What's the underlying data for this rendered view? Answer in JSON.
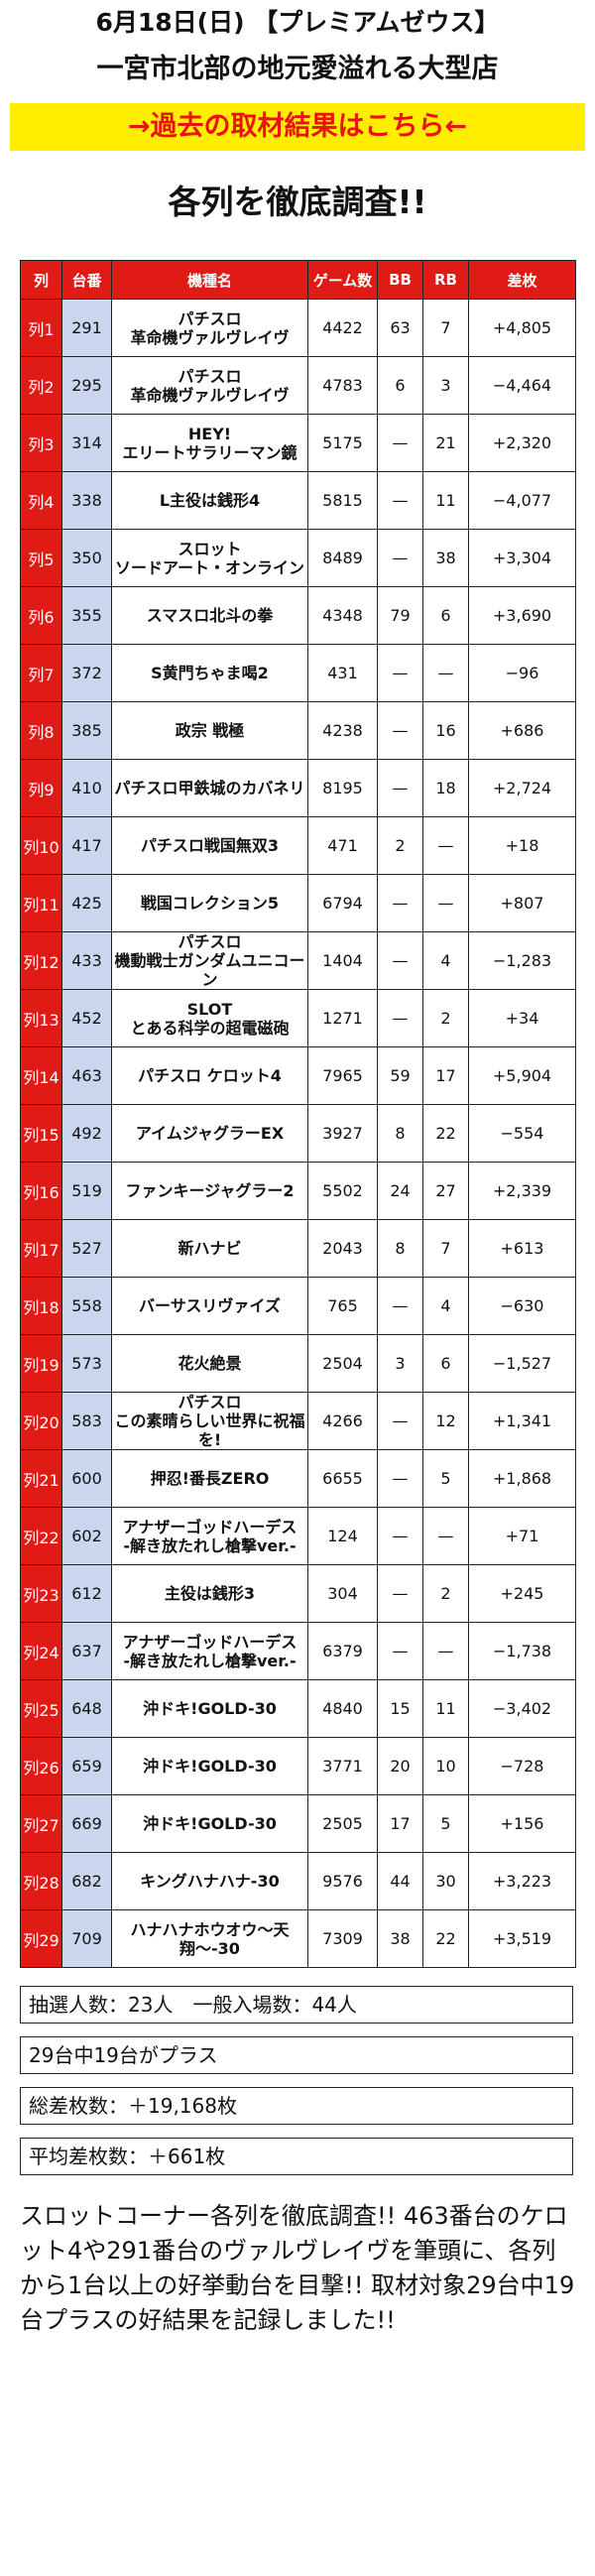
{
  "header": {
    "title1": "6月18日(日) 【プレミアムゼウス】",
    "title2": "一宮市北部の地元愛溢れる大型店",
    "link_label": "→過去の取材結果はこちら←",
    "heading": "各列を徹底調査!!"
  },
  "table": {
    "headers": [
      "列",
      "台番",
      "機種名",
      "ゲーム数",
      "BB",
      "RB",
      "差枚"
    ],
    "rows": [
      {
        "col": "列1",
        "dai": "291",
        "name": [
          "パチスロ",
          "革命機ヴァルヴレイヴ"
        ],
        "games": "4422",
        "bb": "63",
        "rb": "7",
        "diff": "+4,805"
      },
      {
        "col": "列2",
        "dai": "295",
        "name": [
          "パチスロ",
          "革命機ヴァルヴレイヴ"
        ],
        "games": "4783",
        "bb": "6",
        "rb": "3",
        "diff": "−4,464"
      },
      {
        "col": "列3",
        "dai": "314",
        "name": [
          "HEY!",
          "エリートサラリーマン鏡"
        ],
        "games": "5175",
        "bb": "—",
        "rb": "21",
        "diff": "+2,320"
      },
      {
        "col": "列4",
        "dai": "338",
        "name": [
          "L主役は銭形4"
        ],
        "games": "5815",
        "bb": "—",
        "rb": "11",
        "diff": "−4,077"
      },
      {
        "col": "列5",
        "dai": "350",
        "name": [
          "スロット",
          "ソードアート・オンライン"
        ],
        "games": "8489",
        "bb": "—",
        "rb": "38",
        "diff": "+3,304"
      },
      {
        "col": "列6",
        "dai": "355",
        "name": [
          "スマスロ北斗の拳"
        ],
        "games": "4348",
        "bb": "79",
        "rb": "6",
        "diff": "+3,690"
      },
      {
        "col": "列7",
        "dai": "372",
        "name": [
          "S黄門ちゃま喝2"
        ],
        "games": "431",
        "bb": "—",
        "rb": "—",
        "diff": "−96"
      },
      {
        "col": "列8",
        "dai": "385",
        "name": [
          "政宗 戦極"
        ],
        "games": "4238",
        "bb": "—",
        "rb": "16",
        "diff": "+686"
      },
      {
        "col": "列9",
        "dai": "410",
        "name": [
          "パチスロ甲鉄城のカバネリ"
        ],
        "games": "8195",
        "bb": "—",
        "rb": "18",
        "diff": "+2,724"
      },
      {
        "col": "列10",
        "dai": "417",
        "name": [
          "パチスロ戦国無双3"
        ],
        "games": "471",
        "bb": "2",
        "rb": "—",
        "diff": "+18"
      },
      {
        "col": "列11",
        "dai": "425",
        "name": [
          "戦国コレクション5"
        ],
        "games": "6794",
        "bb": "—",
        "rb": "—",
        "diff": "+807"
      },
      {
        "col": "列12",
        "dai": "433",
        "name": [
          "パチスロ",
          "機動戦士ガンダムユニコーン"
        ],
        "games": "1404",
        "bb": "—",
        "rb": "4",
        "diff": "−1,283"
      },
      {
        "col": "列13",
        "dai": "452",
        "name": [
          "SLOT",
          "とある科学の超電磁砲"
        ],
        "games": "1271",
        "bb": "—",
        "rb": "2",
        "diff": "+34"
      },
      {
        "col": "列14",
        "dai": "463",
        "name": [
          "パチスロ ケロット4"
        ],
        "games": "7965",
        "bb": "59",
        "rb": "17",
        "diff": "+5,904"
      },
      {
        "col": "列15",
        "dai": "492",
        "name": [
          "アイムジャグラーEX"
        ],
        "games": "3927",
        "bb": "8",
        "rb": "22",
        "diff": "−554"
      },
      {
        "col": "列16",
        "dai": "519",
        "name": [
          "ファンキージャグラー2"
        ],
        "games": "5502",
        "bb": "24",
        "rb": "27",
        "diff": "+2,339"
      },
      {
        "col": "列17",
        "dai": "527",
        "name": [
          "新ハナビ"
        ],
        "games": "2043",
        "bb": "8",
        "rb": "7",
        "diff": "+613"
      },
      {
        "col": "列18",
        "dai": "558",
        "name": [
          "バーサスリヴァイズ"
        ],
        "games": "765",
        "bb": "—",
        "rb": "4",
        "diff": "−630"
      },
      {
        "col": "列19",
        "dai": "573",
        "name": [
          "花火絶景"
        ],
        "games": "2504",
        "bb": "3",
        "rb": "6",
        "diff": "−1,527"
      },
      {
        "col": "列20",
        "dai": "583",
        "name": [
          "パチスロ",
          "この素晴らしい世界に祝福を!"
        ],
        "games": "4266",
        "bb": "—",
        "rb": "12",
        "diff": "+1,341"
      },
      {
        "col": "列21",
        "dai": "600",
        "name": [
          "押忍!番長ZERO"
        ],
        "games": "6655",
        "bb": "—",
        "rb": "5",
        "diff": "+1,868"
      },
      {
        "col": "列22",
        "dai": "602",
        "name": [
          "アナザーゴッドハーデス",
          "-解き放たれし槍撃ver.-"
        ],
        "games": "124",
        "bb": "—",
        "rb": "—",
        "diff": "+71"
      },
      {
        "col": "列23",
        "dai": "612",
        "name": [
          "主役は銭形3"
        ],
        "games": "304",
        "bb": "—",
        "rb": "2",
        "diff": "+245"
      },
      {
        "col": "列24",
        "dai": "637",
        "name": [
          "アナザーゴッドハーデス",
          "-解き放たれし槍撃ver.-"
        ],
        "games": "6379",
        "bb": "—",
        "rb": "—",
        "diff": "−1,738"
      },
      {
        "col": "列25",
        "dai": "648",
        "name": [
          "沖ドキ!GOLD-30"
        ],
        "games": "4840",
        "bb": "15",
        "rb": "11",
        "diff": "−3,402"
      },
      {
        "col": "列26",
        "dai": "659",
        "name": [
          "沖ドキ!GOLD-30"
        ],
        "games": "3771",
        "bb": "20",
        "rb": "10",
        "diff": "−728"
      },
      {
        "col": "列27",
        "dai": "669",
        "name": [
          "沖ドキ!GOLD-30"
        ],
        "games": "2505",
        "bb": "17",
        "rb": "5",
        "diff": "+156"
      },
      {
        "col": "列28",
        "dai": "682",
        "name": [
          "キングハナハナ-30"
        ],
        "games": "9576",
        "bb": "44",
        "rb": "30",
        "diff": "+3,223"
      },
      {
        "col": "列29",
        "dai": "709",
        "name": [
          "ハナハナホウオウ〜天翔〜-30"
        ],
        "games": "7309",
        "bb": "38",
        "rb": "22",
        "diff": "+3,519"
      }
    ]
  },
  "summary": {
    "entry": "抽選人数：23人　一般入場数：44人",
    "plus": "29台中19台がプラス",
    "total": "総差枚数：＋19,168枚",
    "average": "平均差枚数：＋661枚"
  },
  "paragraph": "スロットコーナー各列を徹底調査!! 463番台のケロット4や291番台のヴァルヴレイヴを筆頭に、各列から1台以上の好挙動台を目撃!! 取材対象29台中19台プラスの好結果を記録しました!!",
  "colors": {
    "red": "#e01a14",
    "yellow": "#ffee00",
    "blue": "#c9d6ee",
    "link": "#e8130c"
  }
}
